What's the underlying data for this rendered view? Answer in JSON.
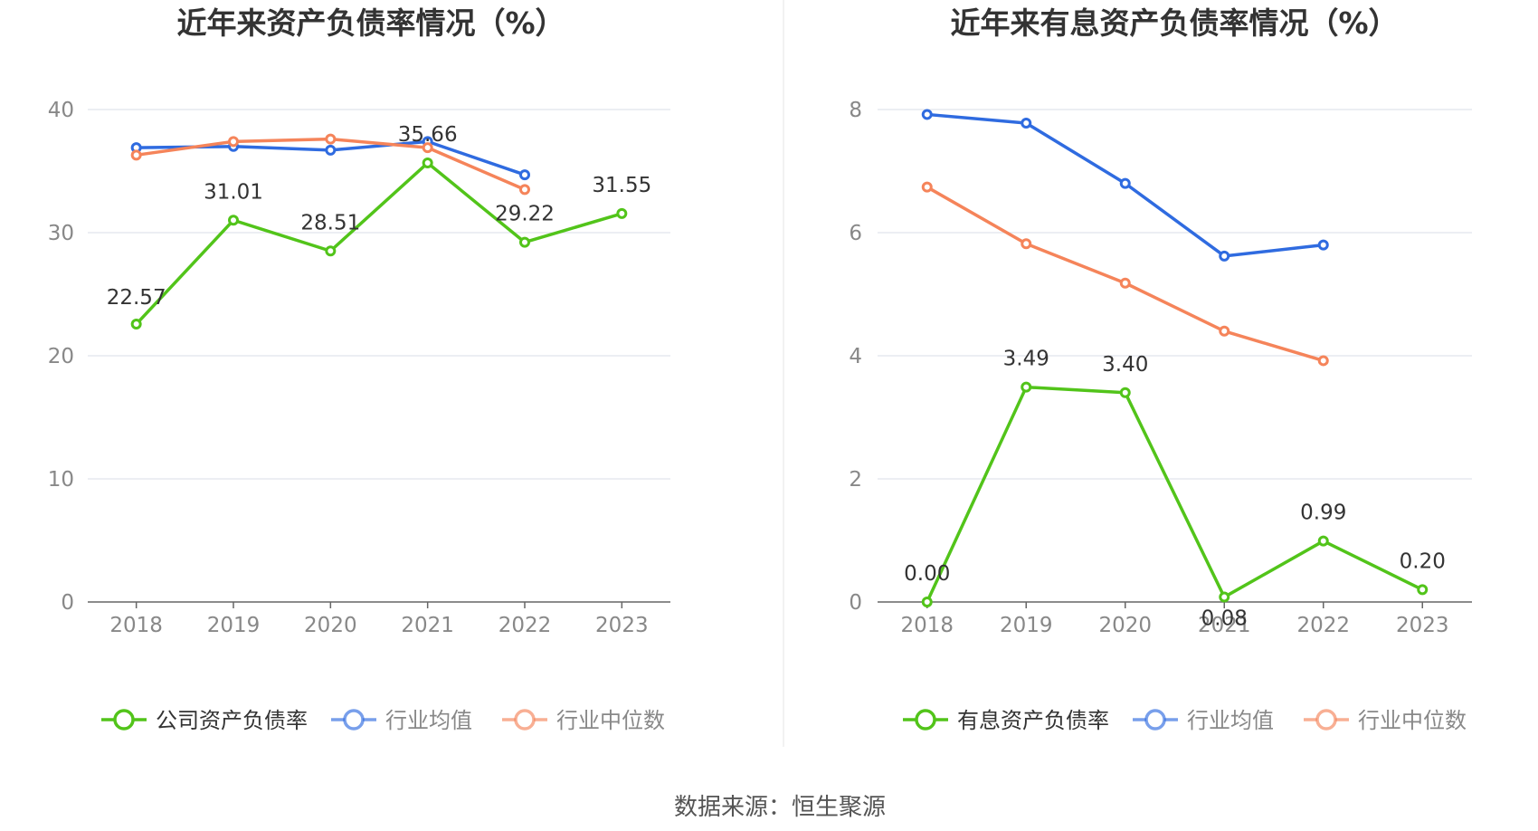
{
  "source_label": "数据来源：恒生聚源",
  "colors": {
    "company": "#52c41a",
    "avg": "#2f6be0",
    "median": "#f5845a"
  },
  "chart_data": [
    {
      "type": "line",
      "title": "近年来资产负债率情况（%）",
      "categories": [
        "2018",
        "2019",
        "2020",
        "2021",
        "2022",
        "2023"
      ],
      "ylim": [
        0,
        40
      ],
      "yticks": [
        0,
        10,
        20,
        30,
        40
      ],
      "grid": true,
      "legend_position": "bottom",
      "series": [
        {
          "name": "公司资产负债率",
          "key": "company",
          "values": [
            22.57,
            31.01,
            28.51,
            35.66,
            29.22,
            31.55
          ],
          "labels": [
            "22.57",
            "31.01",
            "28.51",
            "35.66",
            "29.22",
            "31.55"
          ]
        },
        {
          "name": "行业均值",
          "key": "avg",
          "values": [
            36.9,
            37.0,
            36.7,
            37.4,
            34.7,
            null
          ]
        },
        {
          "name": "行业中位数",
          "key": "median",
          "values": [
            36.3,
            37.4,
            37.6,
            36.9,
            33.5,
            null
          ]
        }
      ]
    },
    {
      "type": "line",
      "title": "近年来有息资产负债率情况（%）",
      "categories": [
        "2018",
        "2019",
        "2020",
        "2021",
        "2022",
        "2023"
      ],
      "ylim": [
        0,
        8
      ],
      "yticks": [
        0,
        2,
        4,
        6,
        8
      ],
      "grid": true,
      "legend_position": "bottom",
      "series": [
        {
          "name": "有息资产负债率",
          "key": "company",
          "values": [
            0.0,
            3.49,
            3.4,
            0.08,
            0.99,
            0.2
          ],
          "labels": [
            "0.00",
            "3.49",
            "3.40",
            "0.08",
            "0.99",
            "0.20"
          ]
        },
        {
          "name": "行业均值",
          "key": "avg",
          "values": [
            7.92,
            7.78,
            6.8,
            5.62,
            5.8,
            null
          ]
        },
        {
          "name": "行业中位数",
          "key": "median",
          "values": [
            6.74,
            5.82,
            5.18,
            4.4,
            3.92,
            null
          ]
        }
      ]
    }
  ]
}
